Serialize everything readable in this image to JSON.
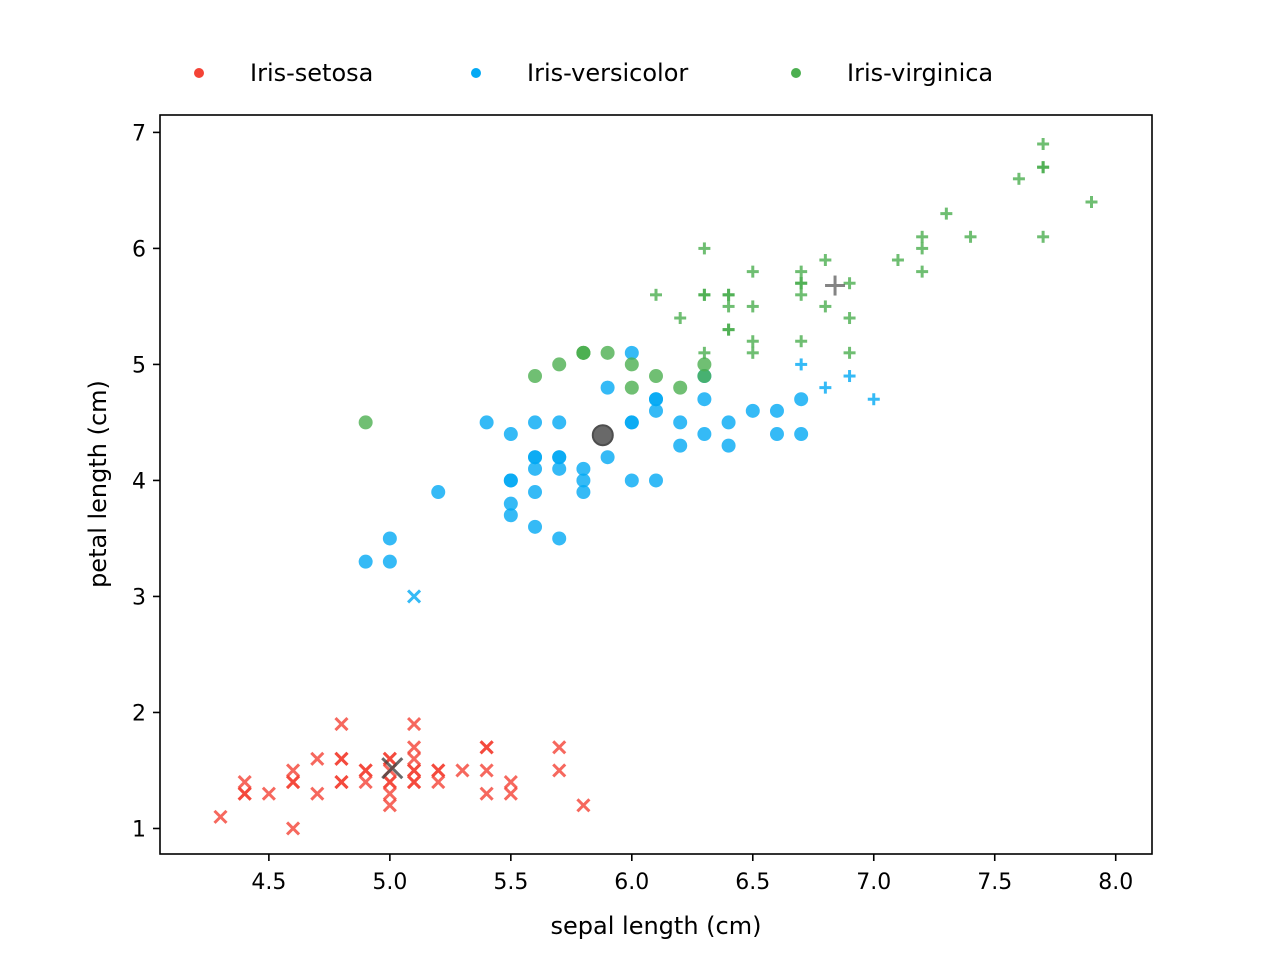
{
  "chart_data": {
    "type": "scatter",
    "title": "",
    "xlabel": "sepal length (cm)",
    "ylabel": "petal length (cm)",
    "xlim": [
      4.05,
      8.15
    ],
    "ylim": [
      0.78,
      7.15
    ],
    "xticks": [
      "4.5",
      "5.0",
      "5.5",
      "6.0",
      "6.5",
      "7.0",
      "7.5",
      "8.0"
    ],
    "yticks": [
      "1",
      "2",
      "3",
      "4",
      "5",
      "6",
      "7"
    ],
    "grid": false,
    "legend_position": "top (above plot, horizontal)",
    "marker_meaning": {
      "x": "predicted Iris-setosa",
      "o": "predicted Iris-versicolor",
      "+": "predicted Iris-virginica"
    },
    "series": [
      {
        "name": "Iris-setosa",
        "color": "#f44336",
        "points": [
          [
            4.3,
            1.1,
            "x"
          ],
          [
            4.4,
            1.3,
            "x"
          ],
          [
            4.4,
            1.3,
            "x"
          ],
          [
            4.4,
            1.4,
            "x"
          ],
          [
            4.5,
            1.3,
            "x"
          ],
          [
            4.6,
            1.0,
            "x"
          ],
          [
            4.6,
            1.4,
            "x"
          ],
          [
            4.6,
            1.4,
            "x"
          ],
          [
            4.6,
            1.5,
            "x"
          ],
          [
            4.7,
            1.3,
            "x"
          ],
          [
            4.7,
            1.6,
            "x"
          ],
          [
            4.8,
            1.4,
            "x"
          ],
          [
            4.8,
            1.4,
            "x"
          ],
          [
            4.8,
            1.6,
            "x"
          ],
          [
            4.8,
            1.6,
            "x"
          ],
          [
            4.8,
            1.9,
            "x"
          ],
          [
            4.9,
            1.4,
            "x"
          ],
          [
            4.9,
            1.5,
            "x"
          ],
          [
            4.9,
            1.5,
            "x"
          ],
          [
            5.0,
            1.2,
            "x"
          ],
          [
            5.0,
            1.3,
            "x"
          ],
          [
            5.0,
            1.4,
            "x"
          ],
          [
            5.0,
            1.4,
            "x"
          ],
          [
            5.0,
            1.5,
            "x"
          ],
          [
            5.0,
            1.6,
            "x"
          ],
          [
            5.0,
            1.6,
            "x"
          ],
          [
            5.1,
            1.4,
            "x"
          ],
          [
            5.1,
            1.4,
            "x"
          ],
          [
            5.1,
            1.5,
            "x"
          ],
          [
            5.1,
            1.5,
            "x"
          ],
          [
            5.1,
            1.6,
            "x"
          ],
          [
            5.1,
            1.7,
            "x"
          ],
          [
            5.1,
            1.9,
            "x"
          ],
          [
            5.2,
            1.4,
            "x"
          ],
          [
            5.2,
            1.5,
            "x"
          ],
          [
            5.2,
            1.5,
            "x"
          ],
          [
            5.3,
            1.5,
            "x"
          ],
          [
            5.4,
            1.3,
            "x"
          ],
          [
            5.4,
            1.5,
            "x"
          ],
          [
            5.4,
            1.7,
            "x"
          ],
          [
            5.4,
            1.7,
            "x"
          ],
          [
            5.5,
            1.3,
            "x"
          ],
          [
            5.5,
            1.4,
            "x"
          ],
          [
            5.7,
            1.5,
            "x"
          ],
          [
            5.7,
            1.7,
            "x"
          ],
          [
            5.8,
            1.2,
            "x"
          ]
        ]
      },
      {
        "name": "Iris-versicolor",
        "color": "#03a9f4",
        "points": [
          [
            4.9,
            3.3,
            "o"
          ],
          [
            5.0,
            3.3,
            "o"
          ],
          [
            5.0,
            3.5,
            "o"
          ],
          [
            5.1,
            3.0,
            "x"
          ],
          [
            5.2,
            3.9,
            "o"
          ],
          [
            5.4,
            4.5,
            "o"
          ],
          [
            5.5,
            3.7,
            "o"
          ],
          [
            5.5,
            3.8,
            "o"
          ],
          [
            5.5,
            4.0,
            "o"
          ],
          [
            5.5,
            4.0,
            "o"
          ],
          [
            5.5,
            4.4,
            "o"
          ],
          [
            5.6,
            3.6,
            "o"
          ],
          [
            5.6,
            3.9,
            "o"
          ],
          [
            5.6,
            4.1,
            "o"
          ],
          [
            5.6,
            4.2,
            "o"
          ],
          [
            5.6,
            4.2,
            "o"
          ],
          [
            5.6,
            4.5,
            "o"
          ],
          [
            5.7,
            3.5,
            "o"
          ],
          [
            5.7,
            4.1,
            "o"
          ],
          [
            5.7,
            4.2,
            "o"
          ],
          [
            5.7,
            4.2,
            "o"
          ],
          [
            5.7,
            4.5,
            "o"
          ],
          [
            5.8,
            3.9,
            "o"
          ],
          [
            5.8,
            4.0,
            "o"
          ],
          [
            5.8,
            4.1,
            "o"
          ],
          [
            5.9,
            4.2,
            "o"
          ],
          [
            5.9,
            4.8,
            "o"
          ],
          [
            6.0,
            4.0,
            "o"
          ],
          [
            6.0,
            4.5,
            "o"
          ],
          [
            6.0,
            4.5,
            "o"
          ],
          [
            6.0,
            5.1,
            "o"
          ],
          [
            6.1,
            4.0,
            "o"
          ],
          [
            6.1,
            4.6,
            "o"
          ],
          [
            6.1,
            4.7,
            "o"
          ],
          [
            6.1,
            4.7,
            "o"
          ],
          [
            6.2,
            4.3,
            "o"
          ],
          [
            6.2,
            4.5,
            "o"
          ],
          [
            6.3,
            4.4,
            "o"
          ],
          [
            6.3,
            4.7,
            "o"
          ],
          [
            6.3,
            4.9,
            "o"
          ],
          [
            6.4,
            4.3,
            "o"
          ],
          [
            6.4,
            4.5,
            "o"
          ],
          [
            6.5,
            4.6,
            "o"
          ],
          [
            6.6,
            4.4,
            "o"
          ],
          [
            6.6,
            4.6,
            "o"
          ],
          [
            6.7,
            4.4,
            "o"
          ],
          [
            6.7,
            4.7,
            "o"
          ],
          [
            6.7,
            5.0,
            "+"
          ],
          [
            6.8,
            4.8,
            "+"
          ],
          [
            6.9,
            4.9,
            "+"
          ],
          [
            7.0,
            4.7,
            "+"
          ]
        ]
      },
      {
        "name": "Iris-virginica",
        "color": "#4caf50",
        "points": [
          [
            4.9,
            4.5,
            "o"
          ],
          [
            5.6,
            4.9,
            "o"
          ],
          [
            5.7,
            5.0,
            "o"
          ],
          [
            5.8,
            5.1,
            "o"
          ],
          [
            5.8,
            5.1,
            "o"
          ],
          [
            5.8,
            5.1,
            "o"
          ],
          [
            5.9,
            5.1,
            "o"
          ],
          [
            6.0,
            4.8,
            "o"
          ],
          [
            6.0,
            5.0,
            "o"
          ],
          [
            6.1,
            4.9,
            "o"
          ],
          [
            6.2,
            4.8,
            "o"
          ],
          [
            6.3,
            4.9,
            "o"
          ],
          [
            6.3,
            5.0,
            "o"
          ],
          [
            6.1,
            5.6,
            "+"
          ],
          [
            6.2,
            5.4,
            "+"
          ],
          [
            6.3,
            5.1,
            "+"
          ],
          [
            6.3,
            5.6,
            "+"
          ],
          [
            6.3,
            5.6,
            "+"
          ],
          [
            6.3,
            6.0,
            "+"
          ],
          [
            6.4,
            5.3,
            "+"
          ],
          [
            6.4,
            5.3,
            "+"
          ],
          [
            6.4,
            5.5,
            "+"
          ],
          [
            6.4,
            5.6,
            "+"
          ],
          [
            6.4,
            5.6,
            "+"
          ],
          [
            6.5,
            5.1,
            "+"
          ],
          [
            6.5,
            5.2,
            "+"
          ],
          [
            6.5,
            5.5,
            "+"
          ],
          [
            6.5,
            5.8,
            "+"
          ],
          [
            6.7,
            5.2,
            "+"
          ],
          [
            6.7,
            5.6,
            "+"
          ],
          [
            6.7,
            5.7,
            "+"
          ],
          [
            6.7,
            5.7,
            "+"
          ],
          [
            6.7,
            5.8,
            "+"
          ],
          [
            6.8,
            5.5,
            "+"
          ],
          [
            6.8,
            5.9,
            "+"
          ],
          [
            6.9,
            5.1,
            "+"
          ],
          [
            6.9,
            5.4,
            "+"
          ],
          [
            6.9,
            5.7,
            "+"
          ],
          [
            7.1,
            5.9,
            "+"
          ],
          [
            7.2,
            5.8,
            "+"
          ],
          [
            7.2,
            6.0,
            "+"
          ],
          [
            7.2,
            6.1,
            "+"
          ],
          [
            7.3,
            6.3,
            "+"
          ],
          [
            7.4,
            6.1,
            "+"
          ],
          [
            7.6,
            6.6,
            "+"
          ],
          [
            7.7,
            6.1,
            "+"
          ],
          [
            7.7,
            6.7,
            "+"
          ],
          [
            7.7,
            6.7,
            "+"
          ],
          [
            7.7,
            6.9,
            "+"
          ],
          [
            7.9,
            6.4,
            "+"
          ]
        ]
      }
    ],
    "centroids": [
      {
        "name": "setosa-centroid",
        "x": 5.01,
        "y": 1.52,
        "marker": "x",
        "color": "#444444"
      },
      {
        "name": "versicolor-centroid",
        "x": 5.88,
        "y": 4.39,
        "marker": "o",
        "color": "#444444"
      },
      {
        "name": "virginica-centroid",
        "x": 6.84,
        "y": 5.68,
        "marker": "+",
        "color": "#666666"
      }
    ]
  }
}
